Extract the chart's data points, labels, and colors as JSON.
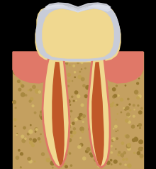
{
  "bg_color": "#000000",
  "bone_color": "#c4a060",
  "gum_color": "#e07868",
  "enamel_color": "#c8ccd8",
  "enamel_inner": "#d8dce8",
  "dentin_color": "#f0d890",
  "pulp_color": "#c05828",
  "pulp_highlight": "#d87038",
  "cementum_color": "#e07868",
  "figsize": [
    2.2,
    2.38
  ],
  "dpi": 100
}
